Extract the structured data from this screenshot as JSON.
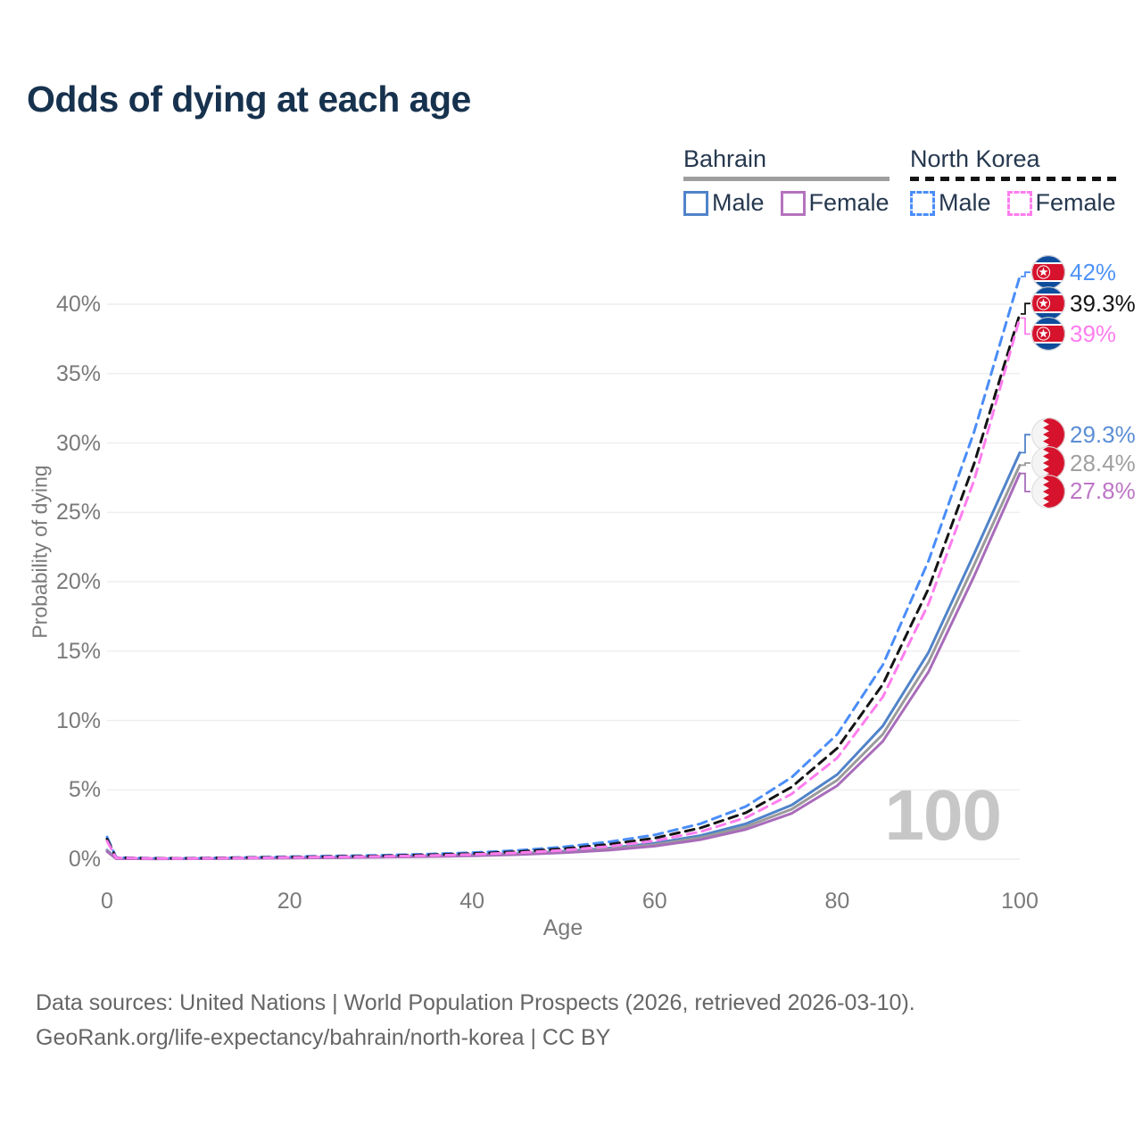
{
  "title": "Odds of dying at each age",
  "legend": {
    "groups": [
      {
        "country": "Bahrain",
        "line_style": "solid",
        "line_color": "#9e9e9e",
        "items": [
          {
            "label": "Male",
            "color": "#5083c9",
            "dashed": false
          },
          {
            "label": "Female",
            "color": "#b573bd",
            "dashed": false
          }
        ]
      },
      {
        "country": "North Korea",
        "line_style": "dashed",
        "line_color": "#141414",
        "items": [
          {
            "label": "Male",
            "color": "#4a8df8",
            "dashed": true
          },
          {
            "label": "Female",
            "color": "#ff7dee",
            "dashed": true
          }
        ]
      }
    ]
  },
  "watermark": "100",
  "chart_data": {
    "type": "line",
    "title": "Odds of dying at each age",
    "xlabel": "Age",
    "ylabel": "Probability of dying",
    "x_ticks": [
      0,
      20,
      40,
      60,
      80,
      100
    ],
    "y_ticks": [
      "0%",
      "5%",
      "10%",
      "15%",
      "20%",
      "25%",
      "30%",
      "35%",
      "40%"
    ],
    "xlim": [
      0,
      100
    ],
    "ylim_pct": [
      0,
      42.5
    ],
    "grid": "horizontal",
    "legend_position": "top-right",
    "ages": [
      0,
      1,
      5,
      10,
      15,
      20,
      25,
      30,
      35,
      40,
      45,
      50,
      55,
      60,
      65,
      70,
      75,
      80,
      85,
      90,
      95,
      100
    ],
    "series": [
      {
        "name": "Bahrain Male",
        "country": "Bahrain",
        "sex": "male",
        "flag": "bahrain",
        "color": "#5083c9",
        "dashed": false,
        "end_label": {
          "text": "29.3%",
          "color": "#5b8ed6",
          "label_pos_pct": 30.6
        },
        "values_pct": [
          0.65,
          0.05,
          0.03,
          0.04,
          0.07,
          0.1,
          0.13,
          0.17,
          0.23,
          0.3,
          0.41,
          0.57,
          0.8,
          1.15,
          1.7,
          2.55,
          3.9,
          6.1,
          9.6,
          14.9,
          22.0,
          29.3
        ]
      },
      {
        "name": "Bahrain Both sexes",
        "country": "Bahrain",
        "sex": "both",
        "flag": "bahrain",
        "color": "#9a9a9a",
        "dashed": false,
        "end_label": {
          "text": "28.4%",
          "color": "#a0a0a0",
          "label_pos_pct": 28.55
        },
        "values_pct": [
          0.6,
          0.045,
          0.028,
          0.036,
          0.062,
          0.09,
          0.12,
          0.155,
          0.21,
          0.27,
          0.37,
          0.51,
          0.73,
          1.05,
          1.55,
          2.35,
          3.6,
          5.7,
          9.0,
          14.2,
          21.2,
          28.4
        ]
      },
      {
        "name": "Bahrain Female",
        "country": "Bahrain",
        "sex": "female",
        "flag": "bahrain",
        "color": "#a86cba",
        "dashed": false,
        "end_label": {
          "text": "27.8%",
          "color": "#bd76c6",
          "label_pos_pct": 26.5
        },
        "values_pct": [
          0.55,
          0.04,
          0.025,
          0.03,
          0.055,
          0.08,
          0.105,
          0.14,
          0.185,
          0.24,
          0.33,
          0.46,
          0.65,
          0.94,
          1.4,
          2.15,
          3.3,
          5.3,
          8.5,
          13.5,
          20.4,
          27.8
        ]
      },
      {
        "name": "North Korea Male",
        "country": "North Korea",
        "sex": "male",
        "flag": "north-korea",
        "color": "#4a8df8",
        "dashed": true,
        "end_label": {
          "text": "42%",
          "color": "#4f93f7",
          "label_pos_pct": 42.3
        },
        "values_pct": [
          1.6,
          0.12,
          0.07,
          0.08,
          0.13,
          0.18,
          0.23,
          0.28,
          0.36,
          0.47,
          0.63,
          0.88,
          1.25,
          1.75,
          2.55,
          3.8,
          5.9,
          9.0,
          14.0,
          21.5,
          30.8,
          42.0
        ]
      },
      {
        "name": "North Korea Both sexes",
        "country": "North Korea",
        "sex": "both",
        "flag": "north-korea",
        "color": "#141414",
        "dashed": true,
        "end_label": {
          "text": "39.3%",
          "color": "#141414",
          "label_pos_pct": 40.05
        },
        "values_pct": [
          1.45,
          0.1,
          0.06,
          0.07,
          0.11,
          0.15,
          0.19,
          0.24,
          0.31,
          0.4,
          0.54,
          0.75,
          1.07,
          1.52,
          2.25,
          3.35,
          5.2,
          8.0,
          12.6,
          19.5,
          28.5,
          39.3
        ]
      },
      {
        "name": "North Korea Female",
        "country": "North Korea",
        "sex": "female",
        "flag": "north-korea",
        "color": "#ff7dee",
        "dashed": true,
        "end_label": {
          "text": "39%",
          "color": "#ff7dee",
          "label_pos_pct": 37.85
        },
        "values_pct": [
          1.3,
          0.09,
          0.05,
          0.06,
          0.09,
          0.13,
          0.16,
          0.2,
          0.26,
          0.34,
          0.46,
          0.64,
          0.92,
          1.32,
          1.98,
          3.0,
          4.7,
          7.3,
          11.7,
          18.4,
          27.3,
          39.0
        ]
      }
    ]
  },
  "footer": {
    "line1": "Data sources: United Nations | World Population Prospects (2026, retrieved 2026-03-10).",
    "line2": "GeoRank.org/life-expectancy/bahrain/north-korea | CC BY"
  }
}
